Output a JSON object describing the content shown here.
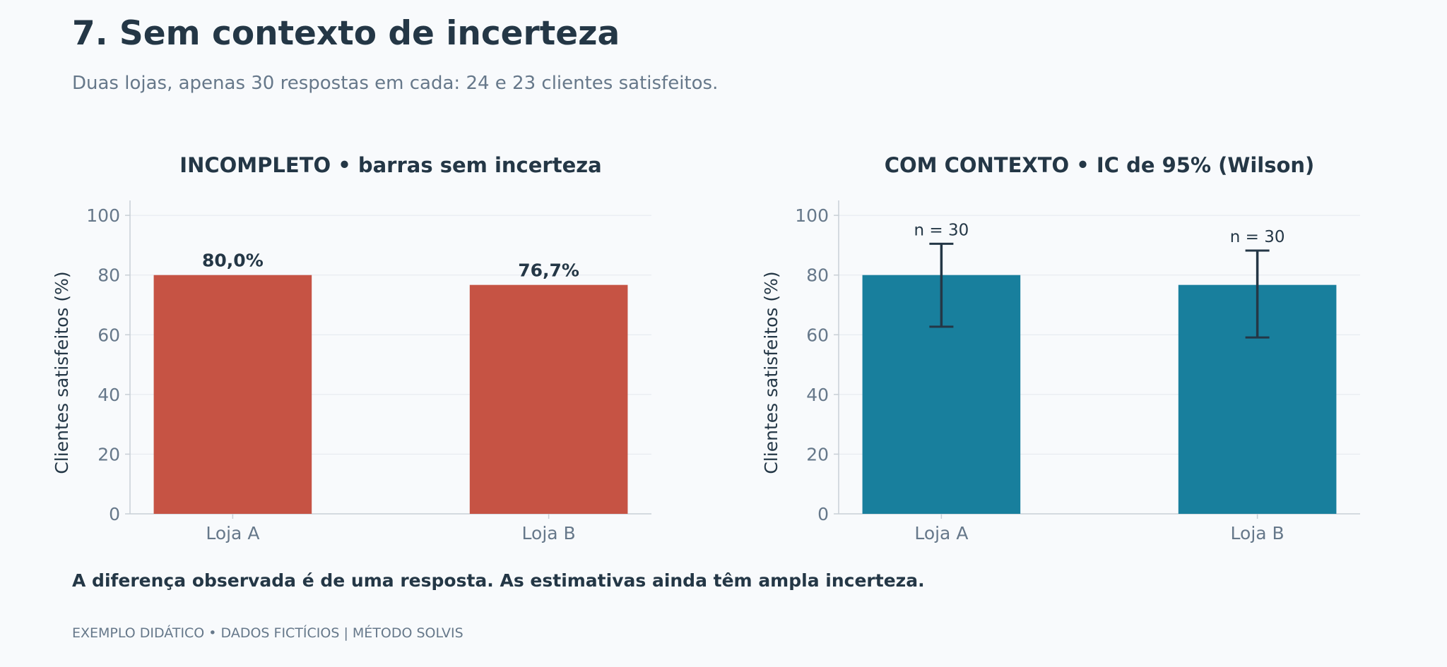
{
  "title": "7. Sem contexto de incerteza",
  "subtitle": "Duas lojas, apenas 30 respostas em cada: 24 e 23 clientes satisfeitos.",
  "note": "A diferença observada é de uma resposta. As estimativas ainda têm ampla incerteza.",
  "footer": "EXEMPLO DIDÁTICO • DADOS FICTÍCIOS | MÉTODO SOLVIS",
  "colors": {
    "bar_incomplete": "#c65344",
    "bar_context": "#187f9d",
    "text_dark": "#243746",
    "text_muted": "#66788a",
    "grid": "#e3e8ee",
    "axis": "#c8cfd6"
  },
  "chart_data": [
    {
      "type": "bar",
      "title": "INCOMPLETO • barras sem incerteza",
      "categories": [
        "Loja A",
        "Loja B"
      ],
      "values": [
        80.0,
        76.7
      ],
      "value_labels": [
        "80,0%",
        "76,7%"
      ],
      "ylabel": "Clientes satisfeitos (%)",
      "ylim": [
        0,
        105
      ],
      "yticks": [
        0,
        20,
        40,
        60,
        80,
        100
      ],
      "grid": true
    },
    {
      "type": "bar",
      "title": "COM CONTEXTO • IC de 95% (Wilson)",
      "categories": [
        "Loja A",
        "Loja B"
      ],
      "values": [
        80.0,
        76.7
      ],
      "error_low": [
        62.7,
        59.1
      ],
      "error_high": [
        90.5,
        88.2
      ],
      "annotations": [
        "n = 30",
        "n = 30"
      ],
      "ylabel": "Clientes satisfeitos (%)",
      "ylim": [
        0,
        105
      ],
      "yticks": [
        0,
        20,
        40,
        60,
        80,
        100
      ],
      "grid": true
    }
  ]
}
